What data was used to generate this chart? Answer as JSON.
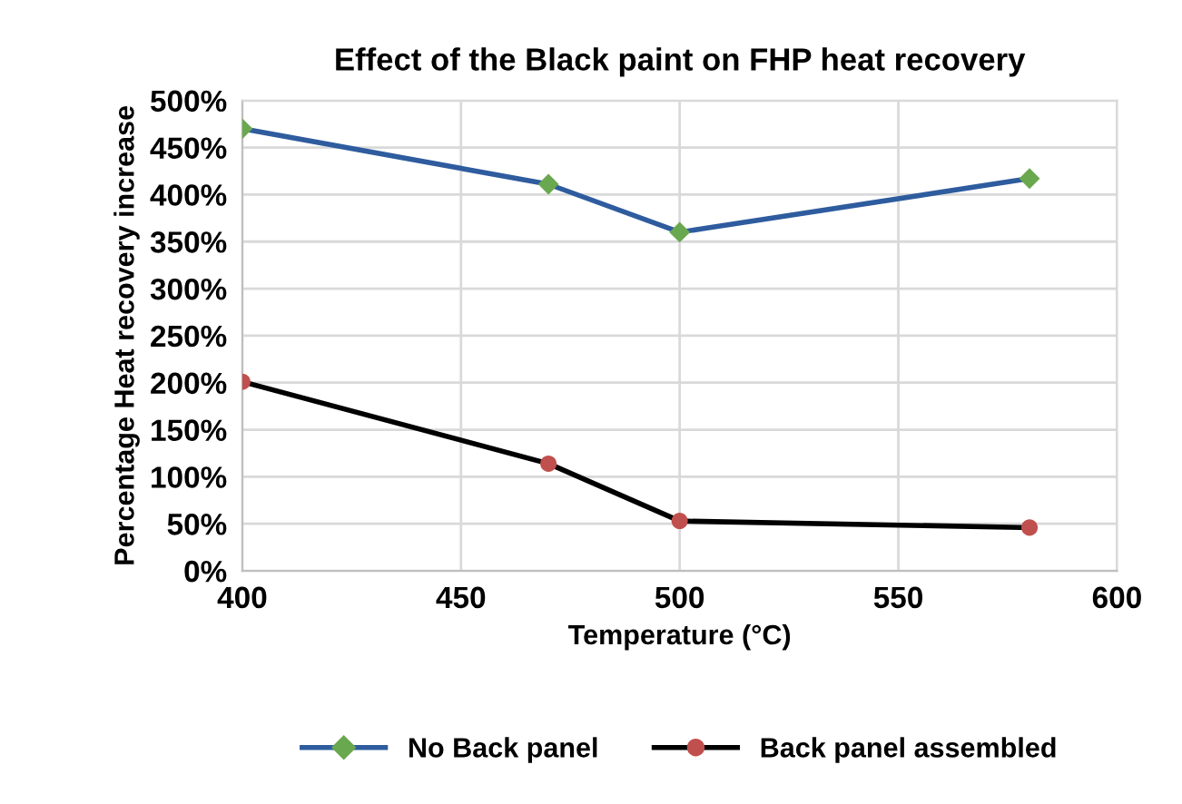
{
  "chart_data": {
    "type": "line",
    "title": "Effect of the Black paint on FHP heat recovery",
    "xlabel": "Temperature (°C)",
    "ylabel": "Percentage Heat recovery increase",
    "x": [
      400,
      470,
      500,
      580
    ],
    "series": [
      {
        "name": "No Back panel",
        "color": "#2e5c9e",
        "colors": [
          "#6aa84f",
          "#6aa84f",
          "#6aa84f",
          "#6aa84f"
        ],
        "marker": "diamond",
        "values": [
          470,
          411,
          360,
          417
        ]
      },
      {
        "name": "Back panel assembled",
        "color": "#000000",
        "colors": [
          "#c0504d",
          "#c0504d",
          "#c0504d",
          "#c0504d"
        ],
        "marker": "circle",
        "values": [
          201,
          114,
          53,
          46
        ]
      }
    ],
    "xlim": [
      400,
      600
    ],
    "xticks": [
      400,
      450,
      500,
      550,
      600
    ],
    "ylim": [
      0,
      500
    ],
    "yticks": [
      {
        "value": 0,
        "label": "0%"
      },
      {
        "value": 50,
        "label": "50%"
      },
      {
        "value": 100,
        "label": "100%"
      },
      {
        "value": 150,
        "label": "150%"
      },
      {
        "value": 200,
        "label": "200%"
      },
      {
        "value": 250,
        "label": "250%"
      },
      {
        "value": 300,
        "label": "300%"
      },
      {
        "value": 350,
        "label": "350%"
      },
      {
        "value": 400,
        "label": "400%"
      },
      {
        "value": 450,
        "label": "450%"
      },
      {
        "value": 500,
        "label": "500%"
      }
    ],
    "grid": true,
    "legend": "bottom",
    "line_style": "solid"
  }
}
